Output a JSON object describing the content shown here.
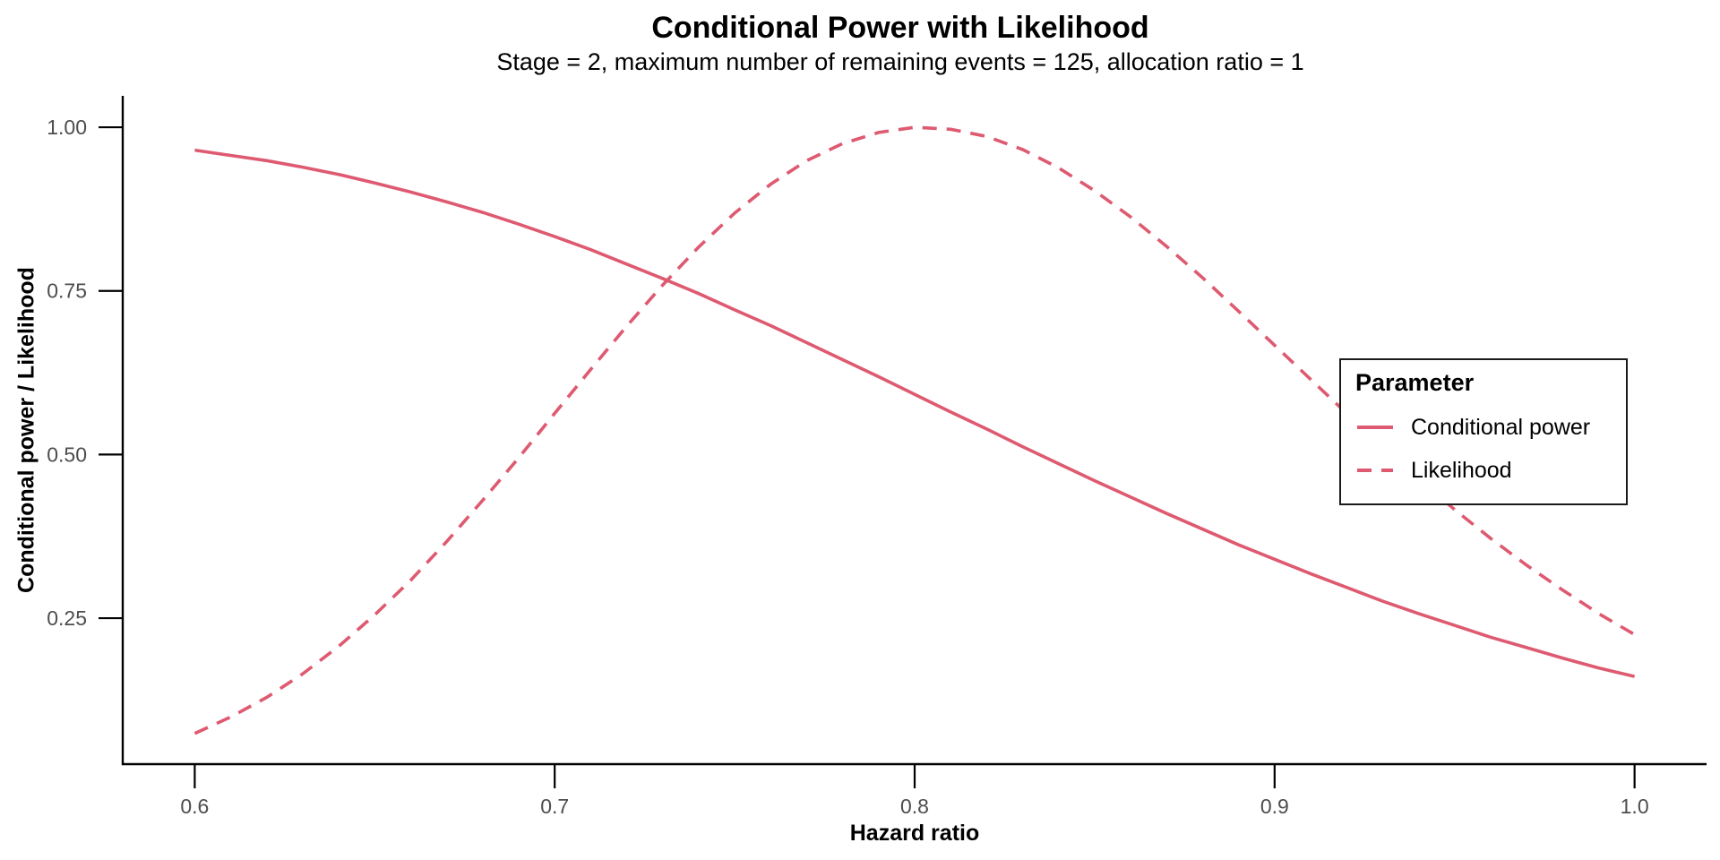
{
  "chart": {
    "title": "Conditional Power with Likelihood",
    "subtitle": "Stage = 2, maximum number of remaining events = 125, allocation ratio = 1",
    "xlabel": "Hazard ratio",
    "ylabel": "Conditional power / Likelihood"
  },
  "legend": {
    "title": "Parameter",
    "items": [
      {
        "label": "Conditional power",
        "style": "solid"
      },
      {
        "label": "Likelihood",
        "style": "dashed"
      }
    ]
  },
  "colors": {
    "line": "#DE5A70",
    "axis_text": "#4d4d4d",
    "axis": "#000000",
    "background": "#ffffff"
  },
  "chart_data": {
    "type": "line",
    "title": "Conditional Power with Likelihood",
    "subtitle": "Stage = 2, maximum number of remaining events = 125, allocation ratio = 1",
    "xlabel": "Hazard ratio",
    "ylabel": "Conditional power / Likelihood",
    "grid": false,
    "legend_position": "inside-right",
    "xlim": [
      0.58,
      1.02
    ],
    "ylim": [
      0.027,
      1.048
    ],
    "x_ticks": {
      "values": [
        0.6,
        0.7,
        0.8,
        0.9,
        1.0
      ],
      "labels": [
        "0.6",
        "0.7",
        "0.8",
        "0.9",
        "1.0"
      ]
    },
    "y_ticks": {
      "values": [
        0.25,
        0.5,
        0.75,
        1.0
      ],
      "labels": [
        "0.25",
        "0.50",
        "0.75",
        "1.00"
      ]
    },
    "x": [
      0.6,
      0.61,
      0.62,
      0.63,
      0.64,
      0.65,
      0.66,
      0.67,
      0.68,
      0.69,
      0.7,
      0.71,
      0.72,
      0.73,
      0.74,
      0.75,
      0.76,
      0.77,
      0.78,
      0.79,
      0.8,
      0.81,
      0.82,
      0.83,
      0.84,
      0.85,
      0.86,
      0.87,
      0.88,
      0.89,
      0.9,
      0.91,
      0.92,
      0.93,
      0.94,
      0.95,
      0.96,
      0.97,
      0.98,
      0.99,
      1.0
    ],
    "series": [
      {
        "name": "Conditional power",
        "style": "solid",
        "values": [
          0.965,
          0.957,
          0.949,
          0.939,
          0.928,
          0.915,
          0.901,
          0.886,
          0.87,
          0.852,
          0.833,
          0.813,
          0.791,
          0.769,
          0.746,
          0.721,
          0.697,
          0.671,
          0.645,
          0.619,
          0.592,
          0.565,
          0.539,
          0.512,
          0.486,
          0.46,
          0.435,
          0.41,
          0.386,
          0.362,
          0.34,
          0.318,
          0.297,
          0.276,
          0.257,
          0.239,
          0.221,
          0.205,
          0.189,
          0.174,
          0.161
        ]
      },
      {
        "name": "Likelihood",
        "style": "dashed",
        "values": [
          0.074,
          0.099,
          0.129,
          0.165,
          0.207,
          0.255,
          0.308,
          0.367,
          0.43,
          0.495,
          0.563,
          0.63,
          0.696,
          0.759,
          0.817,
          0.869,
          0.913,
          0.949,
          0.975,
          0.992,
          1.0,
          0.997,
          0.986,
          0.966,
          0.938,
          0.903,
          0.863,
          0.818,
          0.77,
          0.719,
          0.667,
          0.615,
          0.563,
          0.512,
          0.463,
          0.416,
          0.372,
          0.331,
          0.293,
          0.257,
          0.225
        ]
      }
    ]
  }
}
